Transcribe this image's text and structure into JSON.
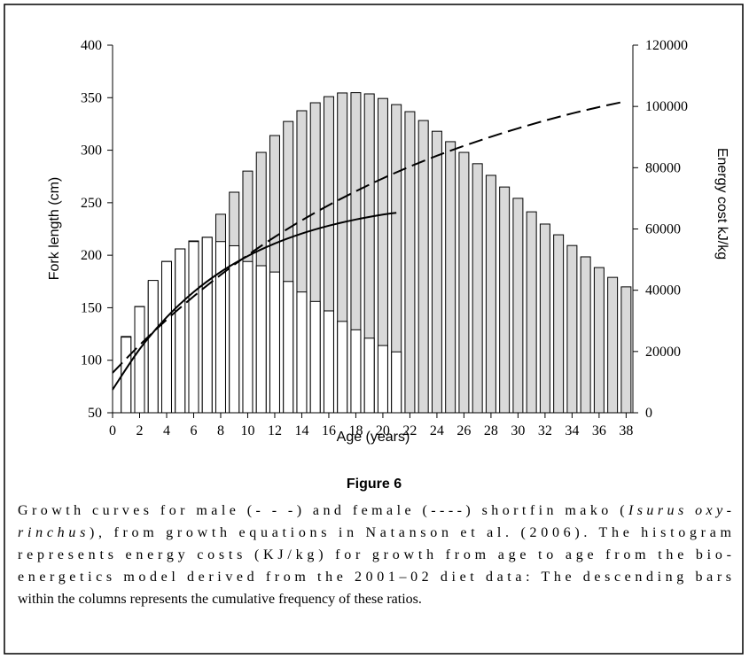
{
  "chart_data": {
    "type": "bar-line",
    "x_label": "Age (years)",
    "y_label": "Fork length (cm)",
    "y2_label": "Energy cost kJ/kg",
    "xlim": [
      0,
      38.5
    ],
    "xticks": [
      0,
      2,
      4,
      6,
      8,
      10,
      12,
      14,
      16,
      18,
      20,
      22,
      24,
      26,
      28,
      30,
      32,
      34,
      36,
      38
    ],
    "ylim": [
      50,
      400
    ],
    "yticks": [
      50,
      100,
      150,
      200,
      250,
      300,
      350,
      400
    ],
    "y2lim": [
      0,
      120000
    ],
    "y2ticks": [
      0,
      20000,
      40000,
      60000,
      80000,
      100000,
      120000
    ],
    "series": [
      {
        "kind": "bar",
        "axis": "y2",
        "color": "#d9d9d9",
        "x": [
          1,
          2,
          3,
          4,
          5,
          6,
          7,
          8,
          9,
          10,
          11,
          12,
          13,
          14,
          15,
          16,
          17,
          18,
          19,
          20,
          21,
          22,
          23,
          24,
          25,
          26,
          27,
          28,
          29,
          30,
          31,
          32,
          33,
          34,
          35,
          36,
          37,
          38
        ],
        "values": [
          24900,
          34700,
          42800,
          49400,
          53500,
          56100,
          57300,
          64800,
          72000,
          78900,
          85000,
          90500,
          95100,
          98600,
          101200,
          103200,
          104400,
          104500,
          104100,
          102600,
          100600,
          98300,
          95400,
          91900,
          88500,
          85000,
          81300,
          77500,
          73700,
          70000,
          65600,
          61600,
          58100,
          54600,
          50900,
          47400,
          44200,
          41100
        ]
      },
      {
        "kind": "bar",
        "axis": "y",
        "color": "#ffffff",
        "x": [
          1,
          2,
          3,
          4,
          5,
          6,
          7,
          8,
          9,
          10,
          11,
          12,
          13,
          14,
          15,
          16,
          17,
          18,
          19,
          20,
          21
        ],
        "values": [
          122,
          151,
          176,
          194,
          206,
          213,
          217,
          213,
          209,
          194,
          190,
          184,
          175,
          165,
          156,
          147,
          137,
          129,
          121,
          114,
          108
        ]
      },
      {
        "kind": "line",
        "axis": "y",
        "color": "#000000",
        "dashed": true,
        "x": [
          0,
          2,
          4,
          6,
          8,
          10,
          12,
          14,
          16,
          18,
          20,
          22,
          24,
          26,
          28,
          30,
          32,
          34,
          36,
          38
        ],
        "values": [
          88,
          114.4,
          138.6,
          160.8,
          181.3,
          200.1,
          217.4,
          233.2,
          247.7,
          260.9,
          273.2,
          284.4,
          294.7,
          304.1,
          312.8,
          320.8,
          328.2,
          335,
          341.1,
          346.6
        ]
      },
      {
        "kind": "line",
        "axis": "y",
        "color": "#000000",
        "dashed": false,
        "x": [
          0,
          2,
          4,
          6,
          8,
          10,
          12,
          14,
          16,
          18,
          20,
          21
        ],
        "values": [
          72,
          110.5,
          140.9,
          165,
          184.1,
          199.2,
          211.1,
          220.6,
          228.1,
          234,
          238.7,
          240.4
        ]
      }
    ]
  },
  "figure_label": "Figure 6",
  "caption_lines": [
    [
      {
        "text": "Growth curves for male (- - -) and female (----) shortfin mako ("
      },
      {
        "text": "Isurus oxy-",
        "italic": true
      }
    ],
    [
      {
        "text": "rinchus",
        "italic": true
      },
      {
        "text": "), from growth equations in Natanson et al. (2006). The histogram"
      }
    ],
    [
      {
        "text": "represents energy costs (KJ/kg) for growth from age to age from the bio-"
      }
    ],
    [
      {
        "text": "energetics model derived from the 2001–02 diet data: The descending bars"
      }
    ],
    [
      {
        "text": "within the columns represents the cumulative frequency of these ratios."
      }
    ]
  ]
}
